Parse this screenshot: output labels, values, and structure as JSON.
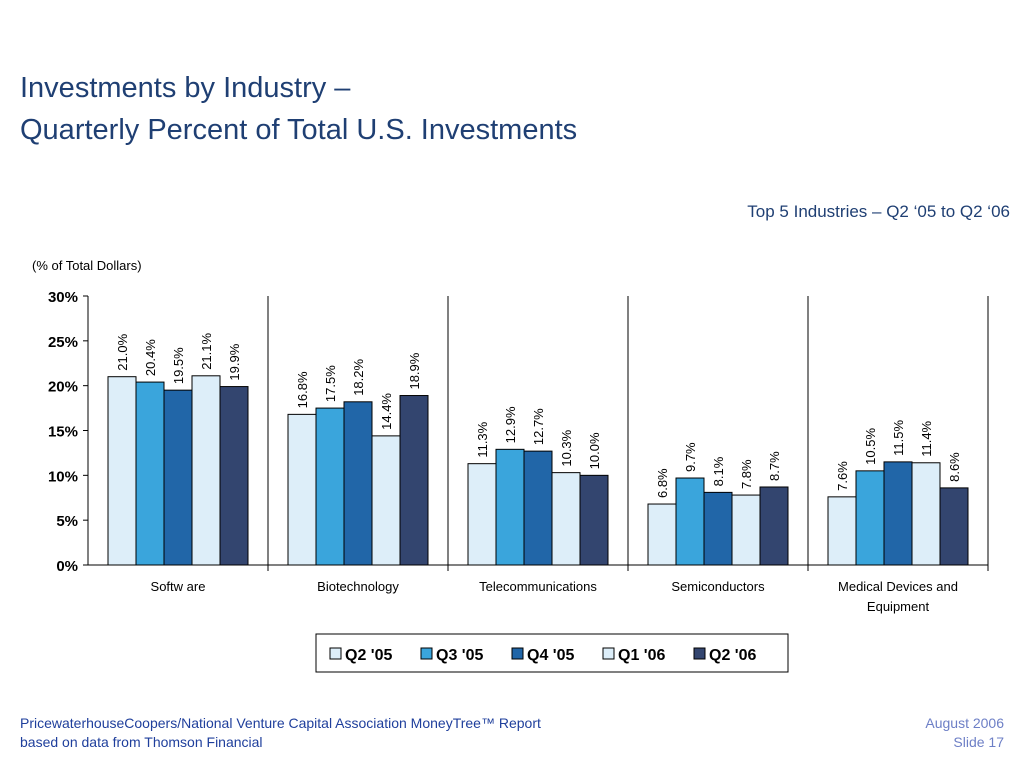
{
  "slide": {
    "title_line1": "Investments by Industry –",
    "title_line2": "Quarterly Percent of Total U.S. Investments",
    "subtitle": "Top 5 Industries – Q2 ‘05 to Q2 ‘06",
    "footer_source_line1": "PricewaterhouseCoopers/National Venture Capital Association MoneyTree™ Report",
    "footer_source_line2": "based on data from Thomson Financial",
    "footer_date": "August 2006",
    "footer_slide": "Slide 17"
  },
  "colors": {
    "title": "#1f3f73",
    "footer_source": "#1f3f9c",
    "footer_meta": "#6d7fc6"
  },
  "chart_data": {
    "type": "bar",
    "ylabel": "(% of Total Dollars)",
    "ylim": [
      0,
      30
    ],
    "yticks": [
      0,
      5,
      10,
      15,
      20,
      25,
      30
    ],
    "ytick_labels": [
      "0%",
      "5%",
      "10%",
      "15%",
      "20%",
      "25%",
      "30%"
    ],
    "categories": [
      [
        "Softw are"
      ],
      [
        "Biotechnology"
      ],
      [
        "Telecommunications"
      ],
      [
        "Semiconductors"
      ],
      [
        "Medical Devices and",
        "Equipment"
      ]
    ],
    "series": [
      {
        "name": "Q2 '05",
        "color": "#ddeef9",
        "values": [
          21.0,
          16.8,
          11.3,
          6.8,
          7.6
        ],
        "labels": [
          "21.0%",
          "16.8%",
          "11.3%",
          "6.8%",
          "7.6%"
        ]
      },
      {
        "name": "Q3 '05",
        "color": "#3aa5dc",
        "values": [
          20.4,
          17.5,
          12.9,
          9.7,
          10.5
        ],
        "labels": [
          "20.4%",
          "17.5%",
          "12.9%",
          "9.7%",
          "10.5%"
        ]
      },
      {
        "name": "Q4 '05",
        "color": "#2166a8",
        "values": [
          19.5,
          18.2,
          12.7,
          8.1,
          11.5
        ],
        "labels": [
          "19.5%",
          "18.2%",
          "12.7%",
          "8.1%",
          "11.5%"
        ]
      },
      {
        "name": "Q1 '06",
        "color": "#ddeef9",
        "values": [
          21.1,
          14.4,
          10.3,
          7.8,
          11.4
        ],
        "labels": [
          "21.1%",
          "14.4%",
          "10.3%",
          "7.8%",
          "11.4%"
        ]
      },
      {
        "name": "Q2 '06",
        "color": "#33456f",
        "values": [
          19.9,
          18.9,
          10.0,
          8.7,
          8.6
        ],
        "labels": [
          "19.9%",
          "18.9%",
          "10.0%",
          "8.7%",
          "8.6%"
        ]
      }
    ],
    "legend_placement": "bottom-center",
    "grid": false,
    "group_separators": true
  }
}
